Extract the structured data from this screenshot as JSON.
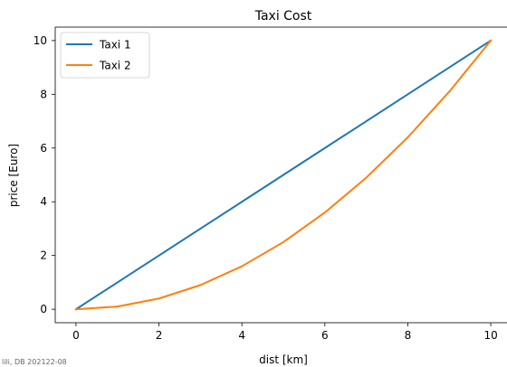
{
  "chart_data": {
    "type": "line",
    "title": "Taxi Cost",
    "xlabel": "dist [km]",
    "ylabel": "price [Euro]",
    "xlim": [
      -0.5,
      10.5
    ],
    "ylim": [
      -0.5,
      10.5
    ],
    "xticks": [
      0,
      2,
      4,
      6,
      8,
      10
    ],
    "yticks": [
      0,
      2,
      4,
      6,
      8,
      10
    ],
    "grid": false,
    "legend_position": "upper-left",
    "series": [
      {
        "name": "Taxi 1",
        "color": "#1f77b4",
        "x": [
          0,
          1,
          2,
          3,
          4,
          5,
          6,
          7,
          8,
          9,
          10
        ],
        "y": [
          0,
          1,
          2,
          3,
          4,
          5,
          6,
          7,
          8,
          9,
          10
        ]
      },
      {
        "name": "Taxi 2",
        "color": "#ff7f0e",
        "x": [
          0,
          1,
          2,
          3,
          4,
          5,
          6,
          7,
          8,
          9,
          10
        ],
        "y": [
          0,
          0.1,
          0.4,
          0.9,
          1.6,
          2.5,
          3.6,
          4.9,
          6.4,
          8.1,
          10
        ]
      }
    ]
  },
  "watermark_text": "lili, DB 202122-08"
}
